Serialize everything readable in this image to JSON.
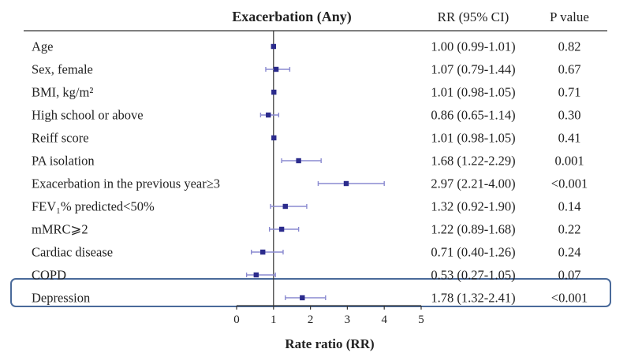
{
  "chart_data": {
    "type": "forest",
    "title": "Exacerbation (Any)",
    "columns": {
      "estimate_header": "RR (95% CI)",
      "p_header": "P value"
    },
    "xlabel": "Rate ratio (RR)",
    "xlim": [
      0,
      5
    ],
    "xticks": [
      "0",
      "1",
      "2",
      "3",
      "4",
      "5"
    ],
    "reference_line": 1,
    "point_color": "#2b2b8c",
    "ci_color": "#8a8ad0",
    "highlight_color": "#4a6a9a",
    "highlighted_row": "Depression",
    "rows": [
      {
        "label": "Age",
        "rr": 1.0,
        "lo": 0.99,
        "hi": 1.01,
        "ci_text": "1.00 (0.99-1.01)",
        "p": "0.82"
      },
      {
        "label": "Sex, female",
        "rr": 1.07,
        "lo": 0.79,
        "hi": 1.44,
        "ci_text": "1.07 (0.79-1.44)",
        "p": "0.67"
      },
      {
        "label": "BMI, kg/m²",
        "rr": 1.01,
        "lo": 0.98,
        "hi": 1.05,
        "ci_text": "1.01 (0.98-1.05)",
        "p": "0.71"
      },
      {
        "label": "High school or above",
        "rr": 0.86,
        "lo": 0.65,
        "hi": 1.14,
        "ci_text": "0.86 (0.65-1.14)",
        "p": "0.30"
      },
      {
        "label": "Reiff score",
        "rr": 1.01,
        "lo": 0.98,
        "hi": 1.05,
        "ci_text": "1.01 (0.98-1.05)",
        "p": "0.41"
      },
      {
        "label": "PA isolation",
        "rr": 1.68,
        "lo": 1.22,
        "hi": 2.29,
        "ci_text": "1.68 (1.22-2.29)",
        "p": "0.001"
      },
      {
        "label": "Exacerbation in the previous year≥3",
        "rr": 2.97,
        "lo": 2.21,
        "hi": 4.0,
        "ci_text": "2.97 (2.21-4.00)",
        "p": "<0.001"
      },
      {
        "label": "FEV₁% predicted<50%",
        "rr": 1.32,
        "lo": 0.92,
        "hi": 1.9,
        "ci_text": "1.32 (0.92-1.90)",
        "p": "0.14"
      },
      {
        "label": "mMRC⩾2",
        "rr": 1.22,
        "lo": 0.89,
        "hi": 1.68,
        "ci_text": "1.22 (0.89-1.68)",
        "p": "0.22"
      },
      {
        "label": "Cardiac disease",
        "rr": 0.71,
        "lo": 0.4,
        "hi": 1.26,
        "ci_text": "0.71 (0.40-1.26)",
        "p": "0.24"
      },
      {
        "label": "COPD",
        "rr": 0.53,
        "lo": 0.27,
        "hi": 1.05,
        "ci_text": "0.53 (0.27-1.05)",
        "p": "0.07"
      },
      {
        "label": "Depression",
        "rr": 1.78,
        "lo": 1.32,
        "hi": 2.41,
        "ci_text": "1.78 (1.32-2.41)",
        "p": "<0.001"
      }
    ]
  }
}
